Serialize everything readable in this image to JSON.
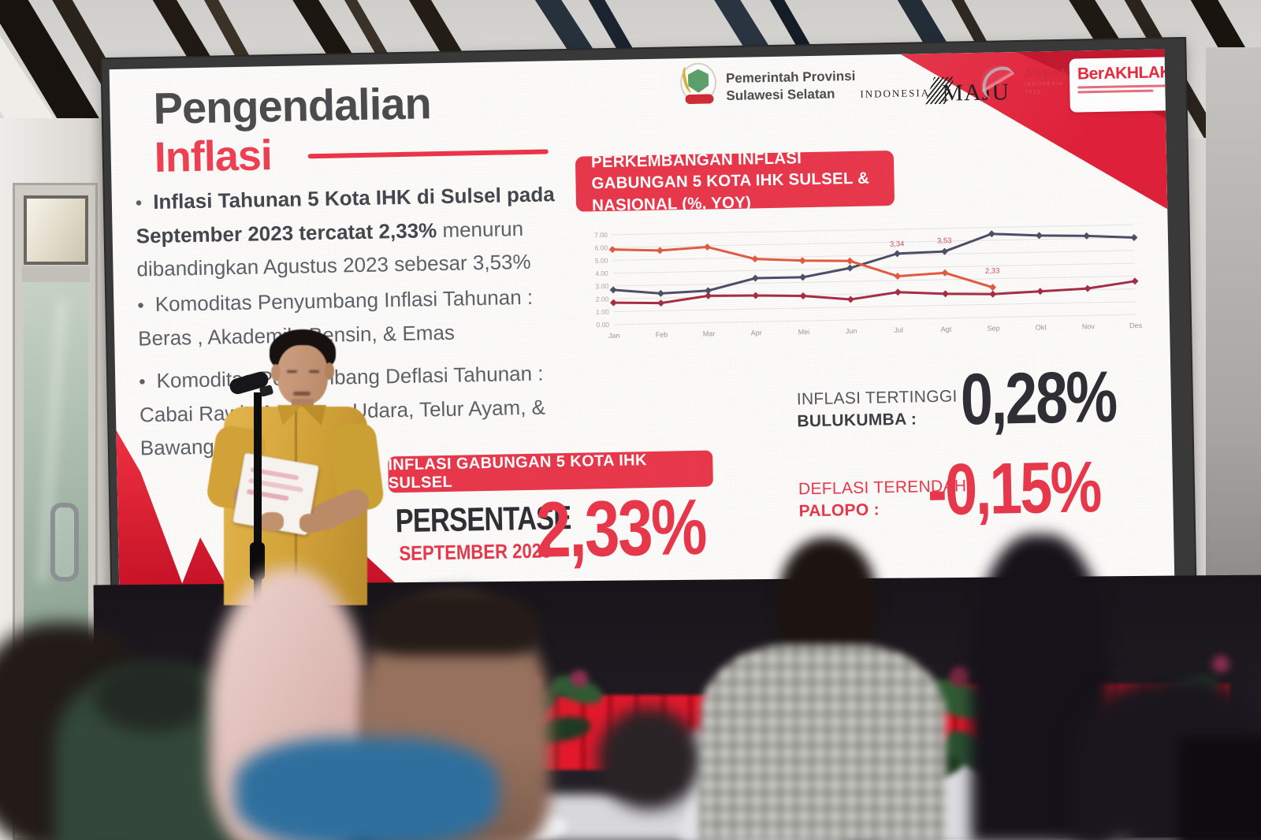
{
  "slide": {
    "title_line1": "Pengendalian",
    "title_line2": "Inflasi",
    "header": {
      "gov_line1": "Pemerintah Provinsi",
      "gov_line2": "Sulawesi Selatan",
      "indonesia_maju_line1": "INDONESIA",
      "indonesia_maju_line2": "MAJU",
      "asean_line1": "ASEAN",
      "asean_line2": "INDONESIA",
      "asean_line3": "2023",
      "berakhlak": "BerAKHLAK"
    },
    "bullets": {
      "b1_bold": "Inflasi Tahunan 5 Kota IHK di Sulsel pada September 2023 tercatat 2,33%",
      "b1_rest": " menurun dibandingkan Agustus 2023 sebesar 3,53%",
      "b2": "Komoditas Penyumbang Inflasi Tahunan : Beras , Akademik ,Bensin,  & Emas",
      "b3": "Komoditas Penyumbang Deflasi Tahunan : Cabai Rawit, Angkutan Udara, Telur Ayam, & Bawang"
    },
    "chart_header": "PERKEMBANGAN INFLASI GABUNGAN 5 KOTA IHK SULSEL & NASIONAL (%, YOY)",
    "stats": {
      "box_label": "INFLASI GABUNGAN 5 KOTA IHK SULSEL",
      "persentase_label": "PERSENTASE",
      "period": "SEPTEMBER 2023",
      "value": "2,33%",
      "highest_label_line1": "INFLASI TERTINGGI",
      "highest_label_line2": "BULUKUMBA :",
      "highest_value": "0,28%",
      "lowest_label_line1": "DEFLASI TERENDAH",
      "lowest_label_line2": "PALOPO :",
      "lowest_value": "-0,15%"
    },
    "colors": {
      "accent_red": "#e8374a",
      "stat_dark": "#2d2d33",
      "title_red": "#ee4052"
    }
  },
  "chart_data": {
    "type": "line",
    "title": "PERKEMBANGAN INFLASI GABUNGAN 5 KOTA IHK SULSEL & NASIONAL (%, YOY)",
    "x": [
      "Jan",
      "Feb",
      "Mar",
      "Apr",
      "Mei",
      "Jun",
      "Jul",
      "Agt",
      "Sep",
      "Okt",
      "Nov",
      "Des"
    ],
    "ylim": [
      0,
      7
    ],
    "yticks": [
      "0.00",
      "1.00",
      "2.00",
      "3.00",
      "4.00",
      "5.00",
      "6.00",
      "7.00"
    ],
    "grid": true,
    "legend": "none",
    "series": [
      {
        "name": "navy",
        "color": "#4e4d68",
        "values": [
          2.7,
          2.35,
          2.5,
          3.4,
          3.4,
          4.05,
          5.1,
          5.2,
          6.5,
          6.3,
          6.2,
          6.0
        ]
      },
      {
        "name": "orange",
        "color": "#e4593f",
        "values": [
          5.85,
          5.7,
          5.9,
          4.9,
          4.7,
          4.6,
          3.34,
          3.53,
          2.33,
          null,
          null,
          null
        ]
      },
      {
        "name": "maroon",
        "color": "#a72c44",
        "values": [
          1.7,
          1.6,
          2.1,
          2.05,
          1.95,
          1.6,
          2.1,
          1.9,
          1.8,
          1.95,
          2.1,
          2.6
        ]
      }
    ],
    "point_labels": [
      {
        "series": "orange",
        "x": "Jul",
        "text": "3,34",
        "dy": -38
      },
      {
        "series": "orange",
        "x": "Agt",
        "text": "3,53",
        "dy": -38
      },
      {
        "series": "orange",
        "x": "Sep",
        "text": "2,33",
        "dy": -18
      }
    ]
  }
}
